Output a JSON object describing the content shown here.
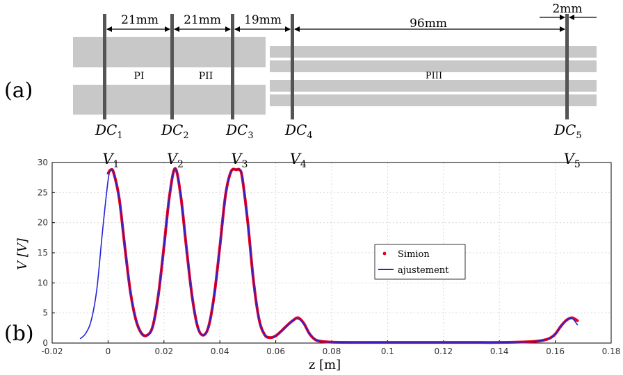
{
  "panel_a": {
    "label": "(a)",
    "dims": [
      "21mm",
      "21mm",
      "19mm",
      "96mm",
      "2mm"
    ],
    "electrodes": [
      {
        "base": "DC",
        "sub": "1"
      },
      {
        "base": "DC",
        "sub": "2"
      },
      {
        "base": "DC",
        "sub": "3"
      },
      {
        "base": "DC",
        "sub": "4"
      },
      {
        "base": "DC",
        "sub": "5"
      }
    ],
    "region_labels": [
      "PI",
      "PII",
      "PIII"
    ],
    "colors": {
      "plate": "#c8c8c8",
      "electrode": "#555555"
    }
  },
  "panel_b": {
    "label": "(b)"
  },
  "chart_data": {
    "type": "line",
    "xlabel": "z [m]",
    "ylabel": "V [V]",
    "xlim": [
      -0.02,
      0.18
    ],
    "ylim": [
      0,
      30
    ],
    "xticks": [
      "-0.02",
      "0",
      "0.02",
      "0.04",
      "0.06",
      "0.08",
      "0.1",
      "0.12",
      "0.14",
      "0.16",
      "0.18"
    ],
    "yticks": [
      "0",
      "5",
      "10",
      "15",
      "20",
      "25",
      "30"
    ],
    "grid": true,
    "legend_position": "center-right",
    "peak_labels": [
      {
        "base": "V",
        "sub": "1",
        "x": 0.001
      },
      {
        "base": "V",
        "sub": "2",
        "x": 0.024
      },
      {
        "base": "V",
        "sub": "3",
        "x": 0.047
      },
      {
        "base": "V",
        "sub": "4",
        "x": 0.068
      },
      {
        "base": "V",
        "sub": "5",
        "x": 0.166
      }
    ],
    "series": [
      {
        "name": "Simion",
        "style": "points",
        "color": "#e8001c",
        "x": [
          0.0,
          0.001,
          0.002,
          0.004,
          0.006,
          0.008,
          0.01,
          0.012,
          0.014,
          0.016,
          0.018,
          0.02,
          0.022,
          0.024,
          0.026,
          0.028,
          0.03,
          0.032,
          0.034,
          0.036,
          0.038,
          0.04,
          0.042,
          0.044,
          0.046,
          0.047,
          0.048,
          0.05,
          0.052,
          0.054,
          0.056,
          0.058,
          0.06,
          0.062,
          0.064,
          0.066,
          0.068,
          0.07,
          0.072,
          0.074,
          0.076,
          0.08,
          0.09,
          0.1,
          0.11,
          0.12,
          0.13,
          0.14,
          0.15,
          0.155,
          0.158,
          0.16,
          0.162,
          0.164,
          0.166,
          0.168
        ],
        "y": [
          28.2,
          28.8,
          28.3,
          24.0,
          16.0,
          8.5,
          3.8,
          1.6,
          1.3,
          2.8,
          8.0,
          16.0,
          24.5,
          29.0,
          24.5,
          16.0,
          8.0,
          2.8,
          1.3,
          2.8,
          8.0,
          16.0,
          24.5,
          28.5,
          28.8,
          28.8,
          27.5,
          20.0,
          10.5,
          4.0,
          1.4,
          0.9,
          1.2,
          2.0,
          2.9,
          3.7,
          4.2,
          3.3,
          1.6,
          0.6,
          0.3,
          0.15,
          0.1,
          0.1,
          0.1,
          0.1,
          0.1,
          0.1,
          0.2,
          0.4,
          0.8,
          1.5,
          2.8,
          3.8,
          4.2,
          3.7
        ]
      },
      {
        "name": "ajustement",
        "style": "line",
        "color": "#2323d8",
        "x": [
          -0.01,
          -0.008,
          -0.006,
          -0.004,
          -0.002,
          0.0,
          0.001,
          0.002,
          0.004,
          0.006,
          0.008,
          0.01,
          0.012,
          0.014,
          0.016,
          0.018,
          0.02,
          0.022,
          0.024,
          0.026,
          0.028,
          0.03,
          0.032,
          0.034,
          0.036,
          0.038,
          0.04,
          0.042,
          0.044,
          0.046,
          0.047,
          0.048,
          0.05,
          0.052,
          0.054,
          0.056,
          0.058,
          0.06,
          0.062,
          0.064,
          0.066,
          0.068,
          0.07,
          0.072,
          0.074,
          0.076,
          0.08,
          0.09,
          0.1,
          0.11,
          0.12,
          0.13,
          0.14,
          0.15,
          0.155,
          0.158,
          0.16,
          0.162,
          0.164,
          0.166,
          0.168
        ],
        "y": [
          0.7,
          1.6,
          3.8,
          9.0,
          18.5,
          27.0,
          28.8,
          28.2,
          24.0,
          16.0,
          8.5,
          3.8,
          1.6,
          1.3,
          2.8,
          8.0,
          16.0,
          24.5,
          29.0,
          24.5,
          16.0,
          8.0,
          2.8,
          1.3,
          2.8,
          8.0,
          16.0,
          24.5,
          28.5,
          28.8,
          28.8,
          27.5,
          20.0,
          10.5,
          4.0,
          1.4,
          0.9,
          1.2,
          2.0,
          2.9,
          3.7,
          4.0,
          3.2,
          1.6,
          0.6,
          0.3,
          0.15,
          0.1,
          0.1,
          0.1,
          0.1,
          0.1,
          0.1,
          0.2,
          0.4,
          0.8,
          1.5,
          2.8,
          3.8,
          4.1,
          3.0
        ]
      }
    ]
  }
}
